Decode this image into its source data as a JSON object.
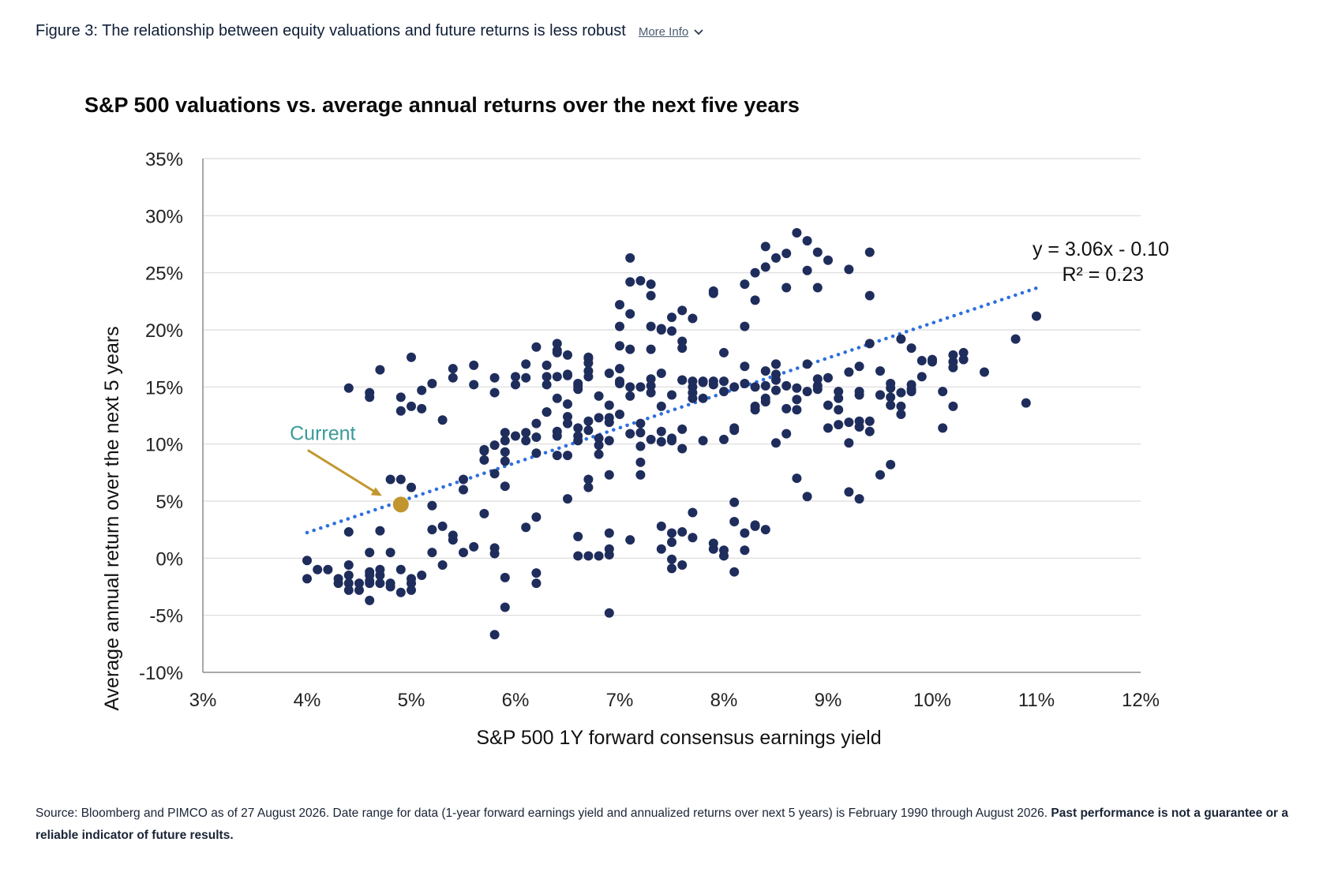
{
  "header": {
    "figure_title": "Figure 3: The relationship between equity valuations and future returns is less robust",
    "more_info_label": "More Info",
    "more_info_icon": "chevron-down-icon"
  },
  "source": {
    "text": "Source: Bloomberg and PIMCO as of 27 August 2026. Date range for data (1-year forward earnings yield and annualized returns over next 5 years) is February 1990 through August 2026. ",
    "disclaimer": "Past performance is not a guarantee or a reliable indicator of future results."
  },
  "chart_data": {
    "type": "scatter",
    "title": "S&P 500 valuations vs. average annual returns over the next five years",
    "xlabel": "S&P 500 1Y forward consensus earnings yield",
    "ylabel": "Average annual return over the next 5 years",
    "xlim": [
      0.03,
      0.12
    ],
    "ylim": [
      -0.1,
      0.35
    ],
    "xticks": [
      0.03,
      0.04,
      0.05,
      0.06,
      0.07,
      0.08,
      0.09,
      0.1,
      0.11,
      0.12
    ],
    "xtick_labels": [
      "3%",
      "4%",
      "5%",
      "6%",
      "7%",
      "8%",
      "9%",
      "10%",
      "11%",
      "12%"
    ],
    "yticks": [
      -0.1,
      -0.05,
      0.0,
      0.05,
      0.1,
      0.15,
      0.2,
      0.25,
      0.3,
      0.35
    ],
    "ytick_labels": [
      "-10%",
      "-5%",
      "0%",
      "5%",
      "10%",
      "15%",
      "20%",
      "25%",
      "30%",
      "35%"
    ],
    "grid": "horizontal",
    "colors": {
      "points": "#1f2d5c",
      "trend": "#2f6fde",
      "current": "#c2962f",
      "annotation": "#3a9a9a",
      "axis": "#8c8c8c",
      "grid": "#d9d9d9"
    },
    "trendline": {
      "equation": "y = 3.06x - 0.10",
      "r_squared": "R² = 0.23",
      "slope": 3.06,
      "intercept": -0.1,
      "x_range": [
        0.04,
        0.11
      ]
    },
    "current": {
      "label": "Current",
      "x": 0.049,
      "y": 0.047
    },
    "points": [
      [
        0.04,
        -0.002
      ],
      [
        0.04,
        -0.018
      ],
      [
        0.041,
        -0.01
      ],
      [
        0.042,
        -0.01
      ],
      [
        0.043,
        -0.018
      ],
      [
        0.043,
        -0.022
      ],
      [
        0.044,
        -0.006
      ],
      [
        0.044,
        -0.015
      ],
      [
        0.044,
        -0.022
      ],
      [
        0.044,
        -0.028
      ],
      [
        0.045,
        -0.022
      ],
      [
        0.045,
        -0.028
      ],
      [
        0.046,
        -0.022
      ],
      [
        0.046,
        -0.02
      ],
      [
        0.046,
        -0.015
      ],
      [
        0.046,
        -0.012
      ],
      [
        0.046,
        -0.037
      ],
      [
        0.046,
        0.005
      ],
      [
        0.047,
        -0.015
      ],
      [
        0.047,
        -0.022
      ],
      [
        0.047,
        -0.01
      ],
      [
        0.048,
        -0.025
      ],
      [
        0.048,
        -0.022
      ],
      [
        0.048,
        0.005
      ],
      [
        0.049,
        -0.03
      ],
      [
        0.049,
        -0.01
      ],
      [
        0.05,
        -0.028
      ],
      [
        0.05,
        -0.022
      ],
      [
        0.05,
        -0.018
      ],
      [
        0.051,
        -0.015
      ],
      [
        0.044,
        0.023
      ],
      [
        0.047,
        0.024
      ],
      [
        0.048,
        0.069
      ],
      [
        0.049,
        0.069
      ],
      [
        0.05,
        0.062
      ],
      [
        0.044,
        0.149
      ],
      [
        0.046,
        0.141
      ],
      [
        0.046,
        0.145
      ],
      [
        0.047,
        0.165
      ],
      [
        0.049,
        0.129
      ],
      [
        0.049,
        0.141
      ],
      [
        0.05,
        0.133
      ],
      [
        0.05,
        0.176
      ],
      [
        0.051,
        0.131
      ],
      [
        0.051,
        0.147
      ],
      [
        0.052,
        0.153
      ],
      [
        0.052,
        0.046
      ],
      [
        0.052,
        0.025
      ],
      [
        0.053,
        0.028
      ],
      [
        0.052,
        0.005
      ],
      [
        0.053,
        -0.006
      ],
      [
        0.053,
        0.121
      ],
      [
        0.054,
        0.158
      ],
      [
        0.054,
        0.166
      ],
      [
        0.054,
        0.02
      ],
      [
        0.054,
        0.016
      ],
      [
        0.055,
        0.005
      ],
      [
        0.055,
        0.06
      ],
      [
        0.055,
        0.069
      ],
      [
        0.056,
        0.01
      ],
      [
        0.056,
        0.169
      ],
      [
        0.056,
        0.152
      ],
      [
        0.057,
        0.086
      ],
      [
        0.057,
        0.094
      ],
      [
        0.057,
        0.095
      ],
      [
        0.057,
        0.039
      ],
      [
        0.058,
        0.009
      ],
      [
        0.058,
        0.099
      ],
      [
        0.058,
        0.074
      ],
      [
        0.058,
        0.145
      ],
      [
        0.058,
        0.004
      ],
      [
        0.058,
        -0.067
      ],
      [
        0.058,
        0.158
      ],
      [
        0.059,
        0.063
      ],
      [
        0.059,
        0.085
      ],
      [
        0.059,
        0.103
      ],
      [
        0.059,
        0.11
      ],
      [
        0.059,
        0.093
      ],
      [
        0.059,
        -0.017
      ],
      [
        0.059,
        -0.043
      ],
      [
        0.06,
        0.159
      ],
      [
        0.06,
        0.152
      ],
      [
        0.06,
        0.107
      ],
      [
        0.061,
        0.027
      ],
      [
        0.061,
        0.103
      ],
      [
        0.061,
        0.11
      ],
      [
        0.061,
        0.158
      ],
      [
        0.061,
        0.17
      ],
      [
        0.062,
        0.092
      ],
      [
        0.062,
        0.118
      ],
      [
        0.062,
        0.106
      ],
      [
        0.062,
        0.185
      ],
      [
        0.062,
        0.036
      ],
      [
        0.062,
        -0.013
      ],
      [
        0.062,
        -0.022
      ],
      [
        0.063,
        0.128
      ],
      [
        0.063,
        0.128
      ],
      [
        0.063,
        0.169
      ],
      [
        0.063,
        0.159
      ],
      [
        0.063,
        0.152
      ],
      [
        0.064,
        0.107
      ],
      [
        0.064,
        0.111
      ],
      [
        0.064,
        0.159
      ],
      [
        0.064,
        0.182
      ],
      [
        0.064,
        0.14
      ],
      [
        0.064,
        0.09
      ],
      [
        0.064,
        0.188
      ],
      [
        0.064,
        0.18
      ],
      [
        0.065,
        0.16
      ],
      [
        0.065,
        0.135
      ],
      [
        0.065,
        0.09
      ],
      [
        0.065,
        0.052
      ],
      [
        0.065,
        0.124
      ],
      [
        0.065,
        0.118
      ],
      [
        0.065,
        0.161
      ],
      [
        0.065,
        0.178
      ],
      [
        0.066,
        0.153
      ],
      [
        0.066,
        0.114
      ],
      [
        0.066,
        0.103
      ],
      [
        0.066,
        0.107
      ],
      [
        0.066,
        0.002
      ],
      [
        0.066,
        0.019
      ],
      [
        0.066,
        0.148
      ],
      [
        0.066,
        0.151
      ],
      [
        0.067,
        0.164
      ],
      [
        0.067,
        0.175
      ],
      [
        0.067,
        0.171
      ],
      [
        0.067,
        0.176
      ],
      [
        0.067,
        0.159
      ],
      [
        0.067,
        0.12
      ],
      [
        0.067,
        0.112
      ],
      [
        0.067,
        0.062
      ],
      [
        0.067,
        0.069
      ],
      [
        0.067,
        0.002
      ],
      [
        0.068,
        0.142
      ],
      [
        0.068,
        0.123
      ],
      [
        0.068,
        0.105
      ],
      [
        0.068,
        0.099
      ],
      [
        0.068,
        0.002
      ],
      [
        0.068,
        0.091
      ],
      [
        0.069,
        0.162
      ],
      [
        0.069,
        0.119
      ],
      [
        0.069,
        0.103
      ],
      [
        0.069,
        0.123
      ],
      [
        0.069,
        0.073
      ],
      [
        0.069,
        0.134
      ],
      [
        0.069,
        0.003
      ],
      [
        0.069,
        0.022
      ],
      [
        0.069,
        0.008
      ],
      [
        0.069,
        -0.048
      ],
      [
        0.07,
        0.155
      ],
      [
        0.07,
        0.126
      ],
      [
        0.07,
        0.186
      ],
      [
        0.07,
        0.153
      ],
      [
        0.07,
        0.166
      ],
      [
        0.07,
        0.222
      ],
      [
        0.07,
        0.203
      ],
      [
        0.071,
        0.214
      ],
      [
        0.071,
        0.242
      ],
      [
        0.071,
        0.183
      ],
      [
        0.071,
        0.263
      ],
      [
        0.071,
        0.142
      ],
      [
        0.071,
        0.15
      ],
      [
        0.071,
        0.109
      ],
      [
        0.071,
        0.016
      ],
      [
        0.072,
        0.15
      ],
      [
        0.072,
        0.11
      ],
      [
        0.072,
        0.084
      ],
      [
        0.072,
        0.073
      ],
      [
        0.072,
        0.118
      ],
      [
        0.072,
        0.098
      ],
      [
        0.072,
        0.243
      ],
      [
        0.073,
        0.151
      ],
      [
        0.073,
        0.104
      ],
      [
        0.073,
        0.23
      ],
      [
        0.073,
        0.24
      ],
      [
        0.073,
        0.203
      ],
      [
        0.073,
        0.183
      ],
      [
        0.073,
        0.145
      ],
      [
        0.073,
        0.157
      ],
      [
        0.074,
        0.102
      ],
      [
        0.074,
        0.111
      ],
      [
        0.074,
        0.2
      ],
      [
        0.074,
        0.162
      ],
      [
        0.074,
        0.133
      ],
      [
        0.074,
        0.201
      ],
      [
        0.074,
        0.028
      ],
      [
        0.074,
        0.008
      ],
      [
        0.075,
        0.143
      ],
      [
        0.075,
        0.103
      ],
      [
        0.075,
        0.105
      ],
      [
        0.075,
        0.211
      ],
      [
        0.075,
        0.199
      ],
      [
        0.075,
        0.022
      ],
      [
        0.075,
        0.014
      ],
      [
        0.075,
        -0.001
      ],
      [
        0.075,
        -0.009
      ],
      [
        0.076,
        0.156
      ],
      [
        0.076,
        0.113
      ],
      [
        0.076,
        0.096
      ],
      [
        0.076,
        0.184
      ],
      [
        0.076,
        0.19
      ],
      [
        0.076,
        0.217
      ],
      [
        0.076,
        0.156
      ],
      [
        0.076,
        0.023
      ],
      [
        0.076,
        -0.006
      ],
      [
        0.077,
        0.145
      ],
      [
        0.077,
        0.14
      ],
      [
        0.077,
        0.15
      ],
      [
        0.077,
        0.155
      ],
      [
        0.077,
        0.21
      ],
      [
        0.077,
        0.04
      ],
      [
        0.077,
        0.018
      ],
      [
        0.078,
        0.155
      ],
      [
        0.078,
        0.103
      ],
      [
        0.078,
        0.154
      ],
      [
        0.078,
        0.14
      ],
      [
        0.079,
        0.152
      ],
      [
        0.079,
        0.232
      ],
      [
        0.079,
        0.234
      ],
      [
        0.079,
        0.155
      ],
      [
        0.079,
        0.013
      ],
      [
        0.079,
        0.008
      ],
      [
        0.08,
        0.146
      ],
      [
        0.08,
        0.18
      ],
      [
        0.08,
        0.155
      ],
      [
        0.08,
        0.104
      ],
      [
        0.08,
        0.002
      ],
      [
        0.08,
        0.007
      ],
      [
        0.081,
        0.15
      ],
      [
        0.081,
        0.114
      ],
      [
        0.081,
        0.112
      ],
      [
        0.081,
        0.032
      ],
      [
        0.081,
        0.049
      ],
      [
        0.081,
        -0.012
      ],
      [
        0.082,
        0.153
      ],
      [
        0.082,
        0.168
      ],
      [
        0.082,
        0.24
      ],
      [
        0.082,
        0.203
      ],
      [
        0.082,
        0.022
      ],
      [
        0.082,
        0.007
      ],
      [
        0.083,
        0.15
      ],
      [
        0.083,
        0.133
      ],
      [
        0.083,
        0.13
      ],
      [
        0.083,
        0.25
      ],
      [
        0.083,
        0.226
      ],
      [
        0.083,
        0.028
      ],
      [
        0.083,
        0.029
      ],
      [
        0.084,
        0.151
      ],
      [
        0.084,
        0.164
      ],
      [
        0.084,
        0.14
      ],
      [
        0.084,
        0.137
      ],
      [
        0.084,
        0.255
      ],
      [
        0.084,
        0.273
      ],
      [
        0.084,
        0.025
      ],
      [
        0.085,
        0.156
      ],
      [
        0.085,
        0.147
      ],
      [
        0.085,
        0.161
      ],
      [
        0.085,
        0.101
      ],
      [
        0.085,
        0.263
      ],
      [
        0.085,
        0.17
      ],
      [
        0.085,
        0.17
      ],
      [
        0.086,
        0.151
      ],
      [
        0.086,
        0.131
      ],
      [
        0.086,
        0.109
      ],
      [
        0.086,
        0.237
      ],
      [
        0.086,
        0.267
      ],
      [
        0.087,
        0.149
      ],
      [
        0.087,
        0.139
      ],
      [
        0.087,
        0.13
      ],
      [
        0.087,
        0.285
      ],
      [
        0.087,
        0.07
      ],
      [
        0.088,
        0.146
      ],
      [
        0.088,
        0.17
      ],
      [
        0.088,
        0.278
      ],
      [
        0.088,
        0.252
      ],
      [
        0.088,
        0.054
      ],
      [
        0.089,
        0.148
      ],
      [
        0.089,
        0.151
      ],
      [
        0.089,
        0.157
      ],
      [
        0.089,
        0.237
      ],
      [
        0.089,
        0.268
      ],
      [
        0.09,
        0.158
      ],
      [
        0.09,
        0.114
      ],
      [
        0.09,
        0.261
      ],
      [
        0.09,
        0.134
      ],
      [
        0.091,
        0.14
      ],
      [
        0.091,
        0.146
      ],
      [
        0.091,
        0.13
      ],
      [
        0.091,
        0.117
      ],
      [
        0.092,
        0.119
      ],
      [
        0.092,
        0.163
      ],
      [
        0.092,
        0.101
      ],
      [
        0.092,
        0.253
      ],
      [
        0.092,
        0.058
      ],
      [
        0.093,
        0.143
      ],
      [
        0.093,
        0.12
      ],
      [
        0.093,
        0.168
      ],
      [
        0.093,
        0.146
      ],
      [
        0.093,
        0.115
      ],
      [
        0.093,
        0.052
      ],
      [
        0.094,
        0.111
      ],
      [
        0.094,
        0.12
      ],
      [
        0.094,
        0.188
      ],
      [
        0.094,
        0.268
      ],
      [
        0.094,
        0.23
      ],
      [
        0.095,
        0.143
      ],
      [
        0.095,
        0.073
      ],
      [
        0.095,
        0.143
      ],
      [
        0.095,
        0.164
      ],
      [
        0.096,
        0.153
      ],
      [
        0.096,
        0.141
      ],
      [
        0.096,
        0.149
      ],
      [
        0.096,
        0.082
      ],
      [
        0.096,
        0.134
      ],
      [
        0.097,
        0.192
      ],
      [
        0.097,
        0.145
      ],
      [
        0.097,
        0.133
      ],
      [
        0.097,
        0.126
      ],
      [
        0.098,
        0.184
      ],
      [
        0.098,
        0.148
      ],
      [
        0.098,
        0.152
      ],
      [
        0.098,
        0.146
      ],
      [
        0.099,
        0.159
      ],
      [
        0.099,
        0.173
      ],
      [
        0.1,
        0.172
      ],
      [
        0.1,
        0.174
      ],
      [
        0.101,
        0.146
      ],
      [
        0.101,
        0.114
      ],
      [
        0.102,
        0.167
      ],
      [
        0.102,
        0.172
      ],
      [
        0.102,
        0.178
      ],
      [
        0.103,
        0.18
      ],
      [
        0.103,
        0.174
      ],
      [
        0.102,
        0.133
      ],
      [
        0.105,
        0.163
      ],
      [
        0.108,
        0.192
      ],
      [
        0.109,
        0.136
      ],
      [
        0.11,
        0.212
      ]
    ]
  }
}
